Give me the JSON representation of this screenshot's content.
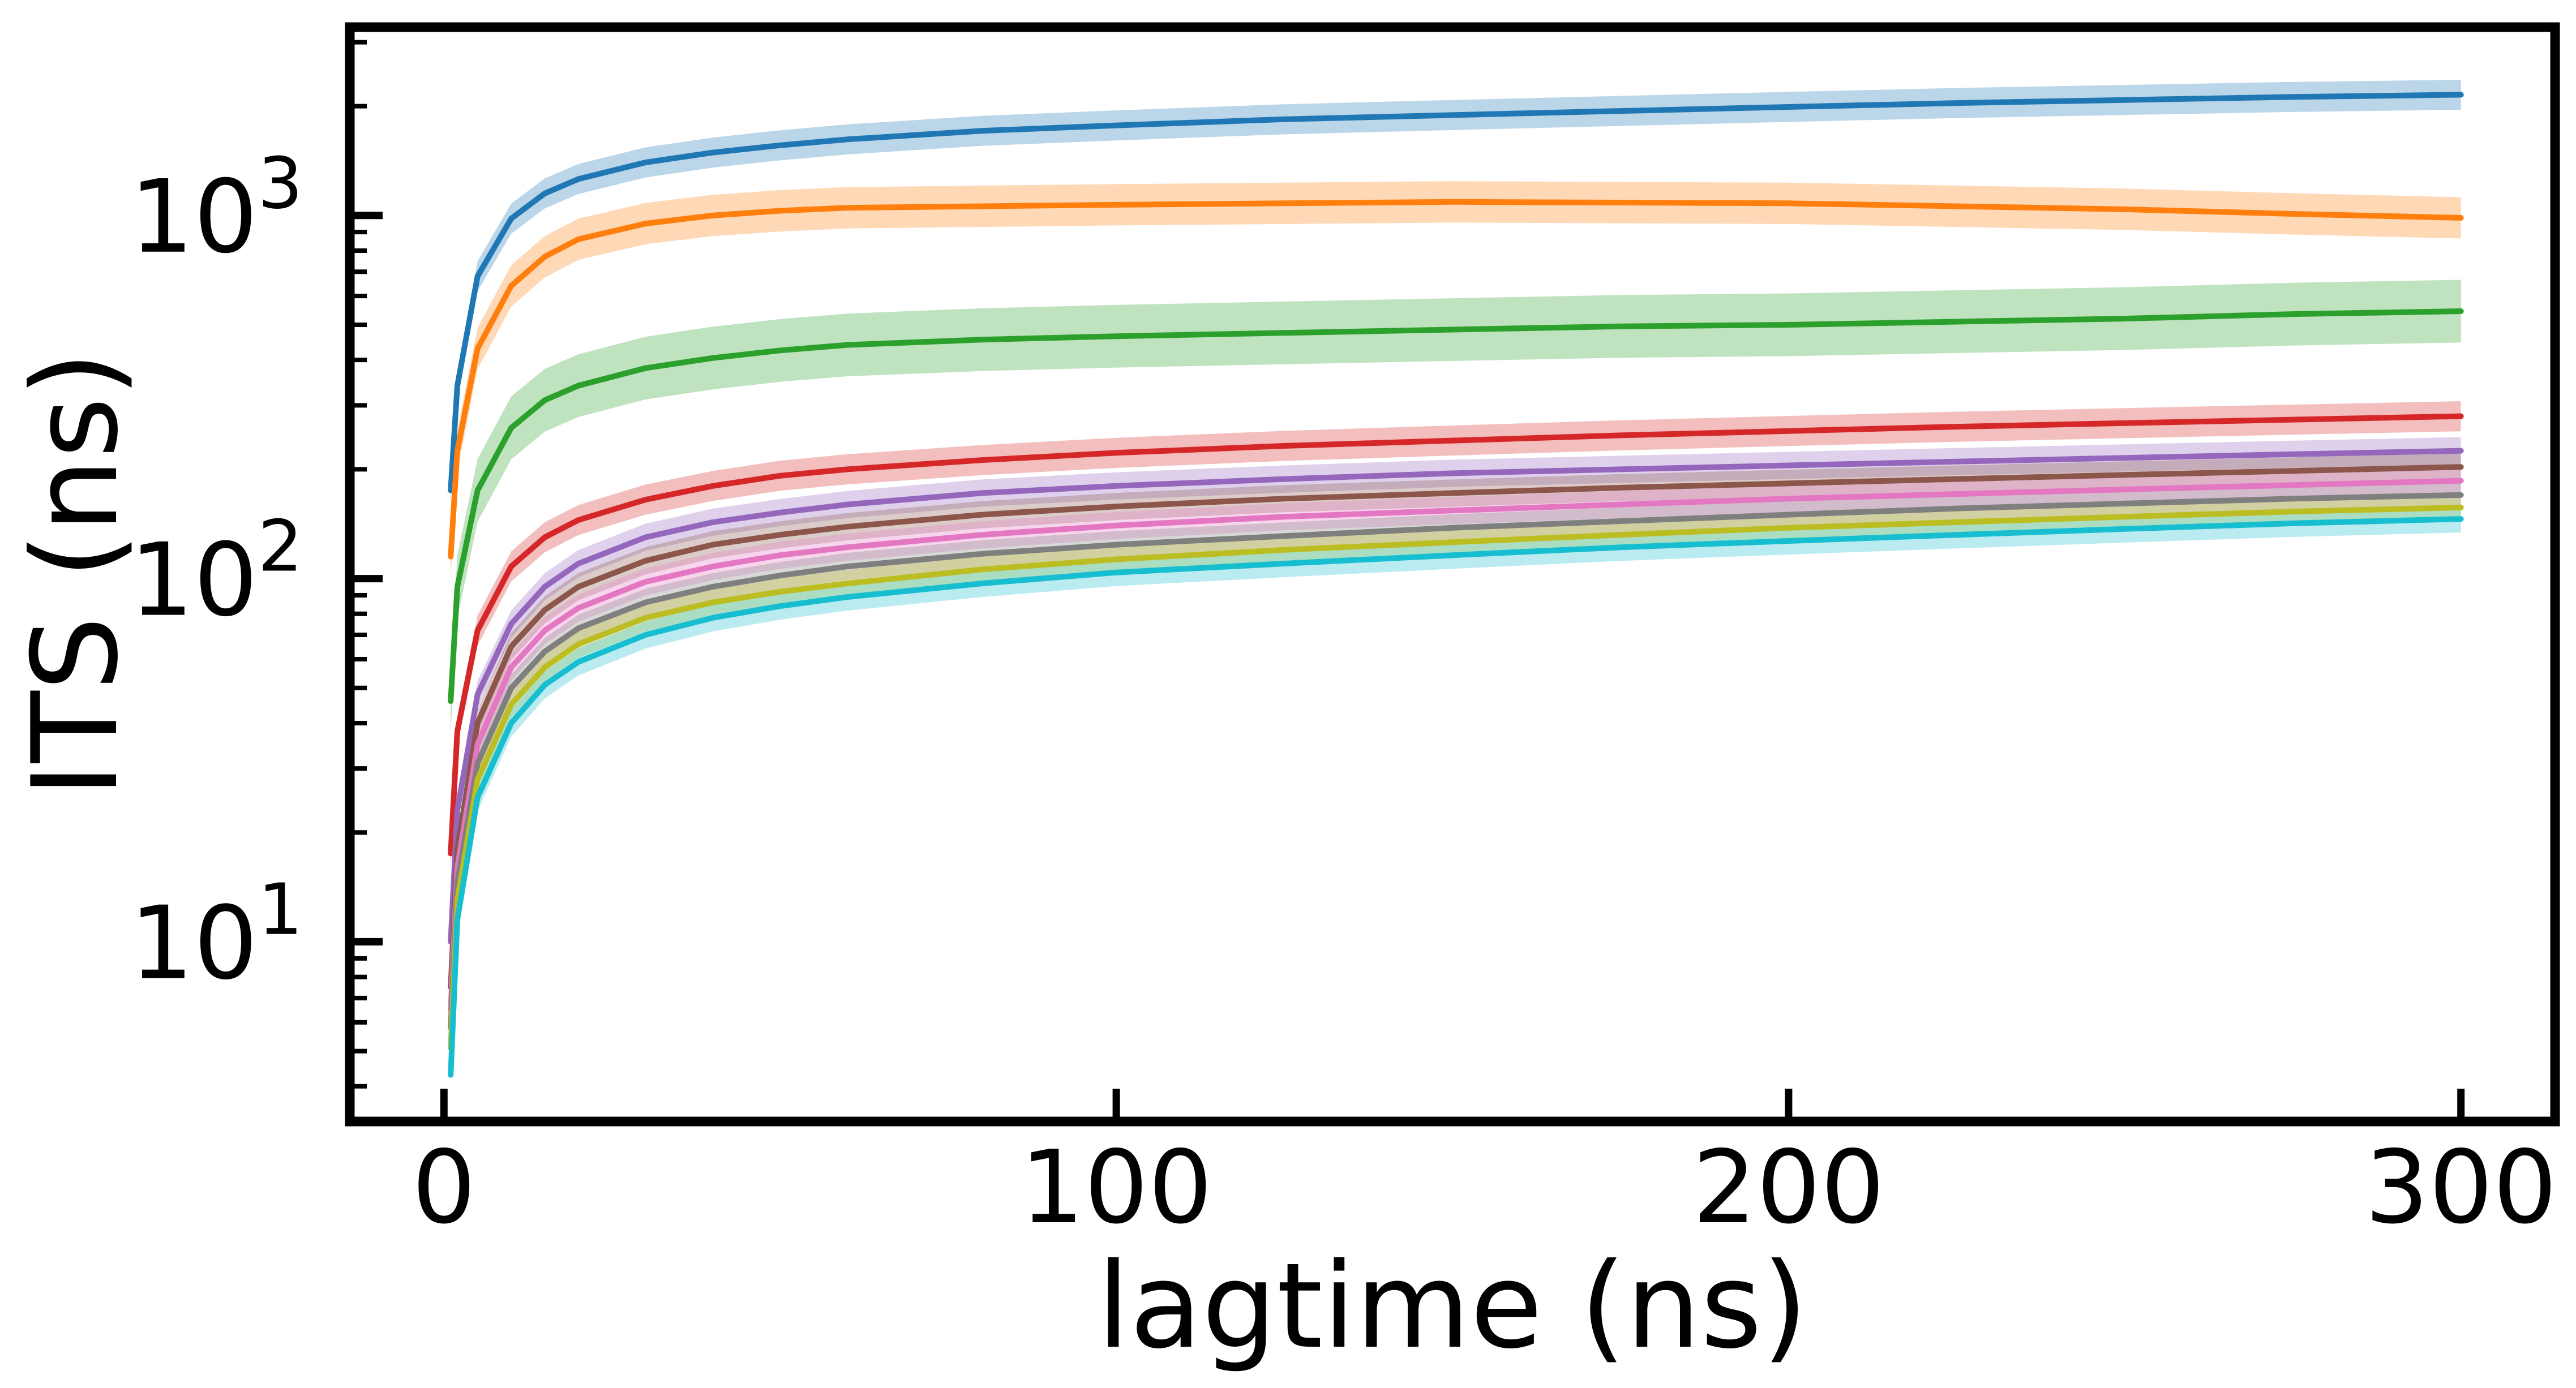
{
  "chart_data": {
    "type": "line",
    "xlabel": "lagtime (ns)",
    "ylabel": "ITS (ns)",
    "xlim": [
      -14,
      314
    ],
    "ylim": [
      3.2,
      3300
    ],
    "yscale": "log",
    "grid": false,
    "legend": "none",
    "x_ticks": [
      {
        "value": 0,
        "label": "0"
      },
      {
        "value": 100,
        "label": "100"
      },
      {
        "value": 200,
        "label": "200"
      },
      {
        "value": 300,
        "label": "300"
      }
    ],
    "y_ticks": [
      {
        "value": 10,
        "base": "10",
        "exp": "1"
      },
      {
        "value": 100,
        "base": "10",
        "exp": "2"
      },
      {
        "value": 1000,
        "base": "10",
        "exp": "3"
      }
    ],
    "x": [
      1,
      2,
      5,
      10,
      15,
      20,
      30,
      40,
      50,
      60,
      80,
      100,
      125,
      150,
      175,
      200,
      225,
      250,
      275,
      300
    ],
    "series": [
      {
        "color": "#1f77b4",
        "band": 0.1,
        "values": [
          175,
          340,
          680,
          980,
          1150,
          1260,
          1400,
          1490,
          1560,
          1620,
          1710,
          1770,
          1840,
          1890,
          1940,
          1990,
          2040,
          2080,
          2120,
          2150
        ]
      },
      {
        "color": "#ff7f0e",
        "band": 0.14,
        "values": [
          115,
          225,
          430,
          640,
          770,
          860,
          950,
          1000,
          1030,
          1050,
          1060,
          1070,
          1080,
          1090,
          1085,
          1080,
          1060,
          1040,
          1010,
          985
        ]
      },
      {
        "color": "#2ca02c",
        "band": 0.22,
        "values": [
          46,
          95,
          175,
          260,
          310,
          340,
          380,
          405,
          425,
          440,
          455,
          465,
          475,
          485,
          495,
          500,
          510,
          520,
          535,
          545
        ]
      },
      {
        "color": "#d62728",
        "band": 0.1,
        "values": [
          17.5,
          38,
          72,
          108,
          130,
          145,
          165,
          180,
          192,
          200,
          212,
          222,
          232,
          240,
          248,
          255,
          262,
          268,
          274,
          280
        ]
      },
      {
        "color": "#9467bd",
        "band": 0.09,
        "values": [
          10,
          23,
          48,
          75,
          95,
          110,
          130,
          143,
          152,
          160,
          172,
          180,
          188,
          195,
          200,
          205,
          210,
          215,
          220,
          225
        ]
      },
      {
        "color": "#8c564b",
        "band": 0.09,
        "values": [
          7.5,
          18,
          40,
          65,
          82,
          95,
          112,
          124,
          132,
          139,
          150,
          158,
          166,
          172,
          178,
          183,
          188,
          193,
          198,
          203
        ]
      },
      {
        "color": "#e377c2",
        "band": 0.09,
        "values": [
          6.5,
          16,
          35,
          57,
          72,
          83,
          98,
          108,
          116,
          122,
          132,
          140,
          148,
          154,
          160,
          166,
          171,
          176,
          181,
          186
        ]
      },
      {
        "color": "#7f7f7f",
        "band": 0.09,
        "values": [
          5.8,
          14.5,
          31,
          50,
          63,
          73,
          86,
          95,
          102,
          108,
          117,
          124,
          131,
          138,
          144,
          150,
          156,
          161,
          166,
          170
        ]
      },
      {
        "color": "#bcbd22",
        "band": 0.09,
        "values": [
          5.1,
          13,
          28,
          45,
          57,
          66,
          78,
          86,
          92,
          97,
          106,
          113,
          120,
          126,
          132,
          138,
          143,
          148,
          153,
          157
        ]
      },
      {
        "color": "#17becf",
        "band": 0.09,
        "values": [
          4.3,
          11.5,
          25,
          40,
          51,
          59,
          70,
          78,
          84,
          89,
          97,
          104,
          110,
          116,
          122,
          127,
          132,
          137,
          142,
          146
        ]
      }
    ]
  }
}
